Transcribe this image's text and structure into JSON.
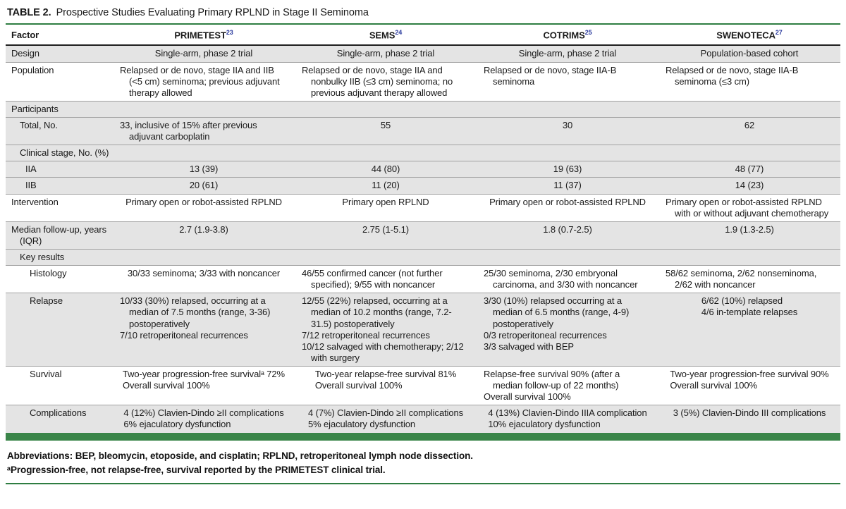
{
  "colors": {
    "green_rule": "#2e7d41",
    "green_bar": "#3a8549",
    "sup_blue": "#2b3b9e",
    "row_shade": "#e4e4e4",
    "rule_gray": "#a2a2a2",
    "rule_black": "#1f1f1f"
  },
  "title": {
    "label": "TABLE 2.",
    "text": "Prospective Studies Evaluating Primary RPLND in Stage II Seminoma"
  },
  "columns": [
    {
      "name": "Factor",
      "sup": ""
    },
    {
      "name": "PRIMETEST",
      "sup": "23"
    },
    {
      "name": "SEMS",
      "sup": "24"
    },
    {
      "name": "COTRIMS",
      "sup": "25"
    },
    {
      "name": "SWENOTECA",
      "sup": "27"
    }
  ],
  "rows": [
    {
      "factor": "Design",
      "indent": 0,
      "shaded": true,
      "section": false,
      "cells": [
        [
          "Single-arm, phase 2 trial"
        ],
        [
          "Single-arm, phase 2 trial"
        ],
        [
          "Single-arm, phase 2 trial"
        ],
        [
          "Population-based cohort"
        ]
      ]
    },
    {
      "factor": "Population",
      "indent": 0,
      "shaded": false,
      "section": false,
      "cells": [
        [
          "Relapsed or de novo, stage IIA and IIB (<5 cm) seminoma; previous adjuvant therapy allowed"
        ],
        [
          "Relapsed or de novo, stage IIA and nonbulky IIB (≤3 cm) seminoma; no previous adjuvant therapy allowed"
        ],
        [
          "Relapsed or de novo, stage IIA-B seminoma"
        ],
        [
          "Relapsed or de novo, stage IIA-B seminoma (≤3 cm)"
        ]
      ]
    },
    {
      "factor": "Participants",
      "indent": 0,
      "shaded": true,
      "section": true,
      "cells": []
    },
    {
      "factor": "Total, No.",
      "indent": 1,
      "shaded": true,
      "section": false,
      "cells": [
        [
          "33, inclusive of 15% after previous adjuvant carboplatin"
        ],
        [
          "55"
        ],
        [
          "30"
        ],
        [
          "62"
        ]
      ]
    },
    {
      "factor": "Clinical stage, No. (%)",
      "indent": 1,
      "shaded": true,
      "section": true,
      "cells": []
    },
    {
      "factor": "IIA",
      "indent": 2,
      "shaded": true,
      "section": false,
      "cells": [
        [
          "13 (39)"
        ],
        [
          "44 (80)"
        ],
        [
          "19 (63)"
        ],
        [
          "48 (77)"
        ]
      ]
    },
    {
      "factor": "IIB",
      "indent": 2,
      "shaded": true,
      "section": false,
      "cells": [
        [
          "20 (61)"
        ],
        [
          "11 (20)"
        ],
        [
          "11 (37)"
        ],
        [
          "14 (23)"
        ]
      ]
    },
    {
      "factor": "Intervention",
      "indent": 0,
      "shaded": false,
      "section": false,
      "cells": [
        [
          "Primary open or robot-assisted RPLND"
        ],
        [
          "Primary open RPLND"
        ],
        [
          "Primary open or robot-assisted RPLND"
        ],
        [
          "Primary open or robot-assisted RPLND with or without adjuvant chemotherapy"
        ]
      ]
    },
    {
      "factor": "Median follow-up, years (IQR)",
      "indent": 0,
      "shaded": true,
      "section": false,
      "cells": [
        [
          "2.7 (1.9-3.8)"
        ],
        [
          "2.75 (1-5.1)"
        ],
        [
          "1.8 (0.7-2.5)"
        ],
        [
          "1.9 (1.3-2.5)"
        ]
      ]
    },
    {
      "factor": "Key results",
      "indent": 1,
      "shaded": true,
      "section": true,
      "cells": []
    },
    {
      "factor": "Histology",
      "indent": 3,
      "shaded": false,
      "section": false,
      "cells": [
        [
          "30/33 seminoma; 3/33 with noncancer"
        ],
        [
          "46/55 confirmed cancer (not further specified); 9/55 with noncancer"
        ],
        [
          "25/30 seminoma, 2/30 embryonal carcinoma, and 3/30 with noncancer"
        ],
        [
          "58/62 seminoma, 2/62 nonseminoma, 2/62 with noncancer"
        ]
      ]
    },
    {
      "factor": "Relapse",
      "indent": 3,
      "shaded": true,
      "section": false,
      "cells": [
        [
          "10/33 (30%) relapsed, occurring at a median of 7.5 months (range, 3-36) postoperatively",
          "7/10 retroperitoneal recurrences"
        ],
        [
          "12/55 (22%) relapsed, occurring at a median of 10.2 months (range, 7.2-31.5) postoperatively",
          "7/12 retroperitoneal recurrences",
          "10/12 salvaged with chemotherapy; 2/12 with surgery"
        ],
        [
          "3/30 (10%) relapsed occurring at a median of 6.5 months (range, 4-9) postoperatively",
          "0/3 retroperitoneal recurrences",
          "3/3 salvaged with BEP"
        ],
        [
          "6/62 (10%) relapsed",
          "4/6 in-template relapses"
        ]
      ]
    },
    {
      "factor": "Survival",
      "indent": 3,
      "shaded": false,
      "section": false,
      "cells": [
        [
          "Two-year progression-free survivalᵃ 72%",
          "Overall survival 100%"
        ],
        [
          "Two-year relapse-free survival 81%",
          "Overall survival 100%"
        ],
        [
          "Relapse-free survival 90% (after a median follow-up of 22 months)",
          "Overall survival 100%"
        ],
        [
          "Two-year progression-free survival 90%",
          "Overall survival 100%"
        ]
      ]
    },
    {
      "factor": "Complications",
      "indent": 3,
      "shaded": true,
      "section": false,
      "cells": [
        [
          "4 (12%) Clavien-Dindo ≥II complications",
          "6% ejaculatory dysfunction"
        ],
        [
          "4 (7%) Clavien-Dindo ≥II complications",
          "5% ejaculatory dysfunction"
        ],
        [
          "4 (13%) Clavien-Dindo IIIA complication",
          "10% ejaculatory dysfunction"
        ],
        [
          "3 (5%) Clavien-Dindo III complications"
        ]
      ]
    }
  ],
  "footnotes": [
    "Abbreviations: BEP, bleomycin, etoposide, and cisplatin; RPLND, retroperitoneal lymph node dissection.",
    "ᵃProgression-free, not relapse-free, survival reported by the PRIMETEST clinical trial."
  ]
}
